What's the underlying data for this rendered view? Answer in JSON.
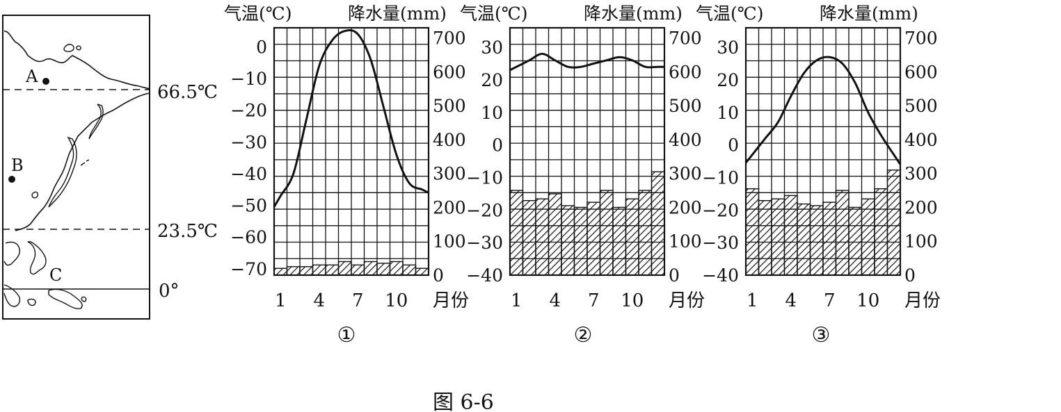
{
  "map": {
    "points": [
      "A",
      "B",
      "C"
    ],
    "latitude_labels": [
      "66.5℃",
      "23.5℃",
      "0°"
    ]
  },
  "figure_caption": "图 6-6",
  "colors": {
    "ink": "#111111",
    "background": "#ffffff"
  },
  "chart_data": [
    {
      "type": "climate",
      "title": "①",
      "temp_axis_label": "气温(℃)",
      "precip_axis_label": "降水量(mm)",
      "month_axis_label": "月份",
      "x_ticks": [
        1,
        4,
        7,
        10
      ],
      "temp_ticks": [
        0,
        -10,
        -20,
        -30,
        -40,
        -50,
        -60,
        -70
      ],
      "temp_range": [
        -72,
        6
      ],
      "precip_ticks": [
        700,
        600,
        500,
        400,
        300,
        200,
        100,
        0
      ],
      "precip_range": [
        0,
        730
      ],
      "months": [
        1,
        2,
        3,
        4,
        5,
        6,
        7,
        8,
        9,
        10,
        11,
        12
      ],
      "temperature": [
        -47,
        -40,
        -23,
        -6,
        2,
        5,
        4,
        -4,
        -19,
        -34,
        -43,
        -45
      ],
      "precipitation": [
        20,
        25,
        25,
        30,
        30,
        40,
        30,
        40,
        35,
        40,
        30,
        20
      ]
    },
    {
      "type": "climate",
      "title": "②",
      "temp_axis_label": "气温(℃)",
      "precip_axis_label": "降水量(mm)",
      "month_axis_label": "月份",
      "x_ticks": [
        1,
        4,
        7,
        10
      ],
      "temp_ticks": [
        30,
        20,
        10,
        0,
        -10,
        -20,
        -30,
        -40
      ],
      "temp_range": [
        -40,
        36
      ],
      "precip_ticks": [
        700,
        600,
        500,
        400,
        300,
        200,
        100,
        0
      ],
      "precip_range": [
        0,
        730
      ],
      "months": [
        1,
        2,
        3,
        4,
        5,
        6,
        7,
        8,
        9,
        10,
        11,
        12
      ],
      "temperature": [
        24,
        26,
        28,
        26,
        24,
        24,
        25,
        26,
        27,
        26,
        24,
        24
      ],
      "precipitation": [
        250,
        220,
        225,
        240,
        205,
        200,
        215,
        250,
        200,
        225,
        250,
        305
      ]
    },
    {
      "type": "climate",
      "title": "③",
      "temp_axis_label": "气温(℃)",
      "precip_axis_label": "降水量(mm)",
      "month_axis_label": "月份",
      "x_ticks": [
        1,
        4,
        7,
        10
      ],
      "temp_ticks": [
        30,
        20,
        10,
        0,
        -10,
        -20,
        -30,
        -40
      ],
      "temp_range": [
        -40,
        36
      ],
      "precip_ticks": [
        700,
        600,
        500,
        400,
        300,
        200,
        100,
        0
      ],
      "precip_range": [
        0,
        730
      ],
      "months": [
        1,
        2,
        3,
        4,
        5,
        6,
        7,
        8,
        9,
        10,
        11,
        12
      ],
      "temperature": [
        -3,
        2,
        7,
        15,
        22,
        26,
        27,
        25,
        19,
        10,
        3,
        -3
      ],
      "precipitation": [
        255,
        220,
        225,
        235,
        210,
        205,
        215,
        250,
        200,
        225,
        255,
        310
      ]
    }
  ]
}
